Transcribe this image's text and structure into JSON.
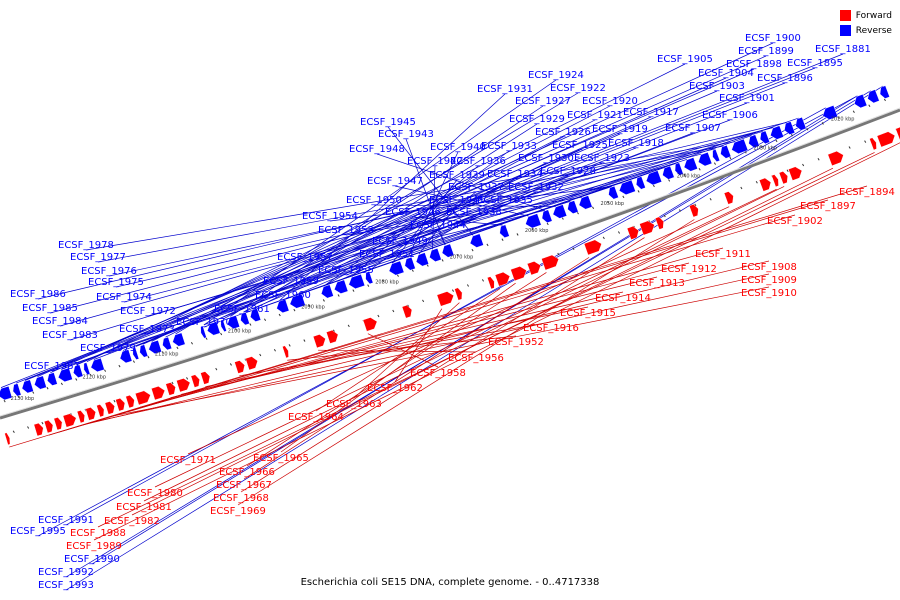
{
  "caption": "Escherichia coli SE15 DNA, complete genome. - 0..4717338",
  "legend": [
    {
      "label": "Forward",
      "color": "#ff0000"
    },
    {
      "label": "Reverse",
      "color": "#0000ff"
    }
  ],
  "colors": {
    "forward": "#ff0000",
    "reverse": "#0000ff",
    "forward_line": "#cc0000",
    "reverse_line": "#0000cc",
    "axis": "#888888"
  },
  "kbp_ticks": [
    "2020 kbp",
    "2030 kbp",
    "2040 kbp",
    "2050 kbp",
    "2060 kbp",
    "2070 kbp",
    "2080 kbp",
    "2090 kbp",
    "2100 kbp",
    "2110 kbp",
    "2120 kbp",
    "2130 kbp"
  ],
  "reverse_labels": [
    "ECSF_1881",
    "ECSF_1895",
    "ECSF_1896",
    "ECSF_1898",
    "ECSF_1899",
    "ECSF_1900",
    "ECSF_1901",
    "ECSF_1903",
    "ECSF_1904",
    "ECSF_1905",
    "ECSF_1906",
    "ECSF_1907",
    "ECSF_1917",
    "ECSF_1918",
    "ECSF_1919",
    "ECSF_1920",
    "ECSF_1921",
    "ECSF_1922",
    "ECSF_1923",
    "ECSF_1924",
    "ECSF_1925",
    "ECSF_1926",
    "ECSF_1927",
    "ECSF_1928",
    "ECSF_1929",
    "ECSF_1930",
    "ECSF_1931",
    "ECSF_1932",
    "ECSF_1933",
    "ECSF_1934",
    "ECSF_1935",
    "ECSF_1936",
    "ECSF_1937",
    "ECSF_1938",
    "ECSF_1939",
    "ECSF_1940",
    "ECSF_1941",
    "ECSF_1942",
    "ECSF_1943",
    "ECSF_1944",
    "ECSF_1945",
    "ECSF_1946",
    "ECSF_1947",
    "ECSF_1948",
    "ECSF_1949",
    "ECSF_1950",
    "ECSF_1951",
    "ECSF_1953",
    "ECSF_1954",
    "ECSF_1955",
    "ECSF_1957",
    "ECSF_1959",
    "ECSF_1960",
    "ECSF_1961",
    "ECSF_1970",
    "ECSF_1972",
    "ECSF_1973",
    "ECSF_1974",
    "ECSF_1975",
    "ECSF_1976",
    "ECSF_1977",
    "ECSF_1978",
    "ECSF_1979",
    "ECSF_1983",
    "ECSF_1984",
    "ECSF_1985",
    "ECSF_1986",
    "ECSF_1987",
    "ECSF_1991",
    "ECSF_1995",
    "ECSF_1990",
    "ECSF_1992",
    "ECSF_1993"
  ],
  "forward_labels": [
    "ECSF_1894",
    "ECSF_1897",
    "ECSF_1902",
    "ECSF_1908",
    "ECSF_1909",
    "ECSF_1910",
    "ECSF_1911",
    "ECSF_1912",
    "ECSF_1913",
    "ECSF_1914",
    "ECSF_1915",
    "ECSF_1916",
    "ECSF_1952",
    "ECSF_1956",
    "ECSF_1958",
    "ECSF_1962",
    "ECSF_1963",
    "ECSF_1964",
    "ECSF_1965",
    "ECSF_1966",
    "ECSF_1967",
    "ECSF_1968",
    "ECSF_1969",
    "ECSF_1971",
    "ECSF_1980",
    "ECSF_1981",
    "ECSF_1982",
    "ECSF_1988",
    "ECSF_1989"
  ]
}
